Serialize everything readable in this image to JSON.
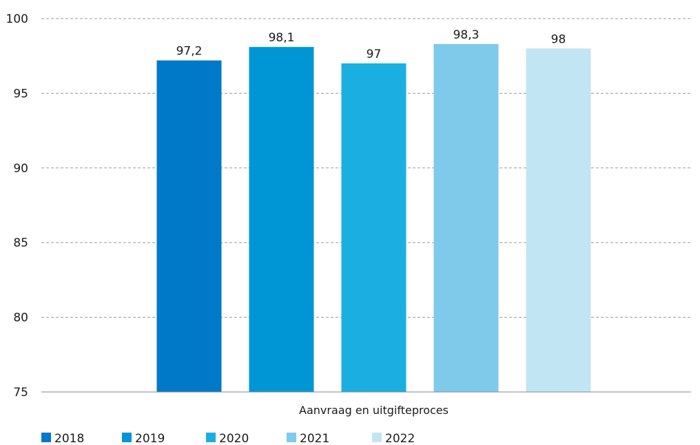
{
  "chart_data": {
    "type": "bar",
    "categories": [
      "Aanvraag en uitgifteproces"
    ],
    "series": [
      {
        "name": "2018",
        "values": [
          97.2
        ],
        "label": "97,2",
        "color": "#0079C8"
      },
      {
        "name": "2019",
        "values": [
          98.1
        ],
        "label": "98,1",
        "color": "#0096D6"
      },
      {
        "name": "2020",
        "values": [
          97.0
        ],
        "label": "97",
        "color": "#1AAFE0"
      },
      {
        "name": "2021",
        "values": [
          98.3
        ],
        "label": "98,3",
        "color": "#7FCAEA"
      },
      {
        "name": "2022",
        "values": [
          98.0
        ],
        "label": "98",
        "color": "#C2E5F4"
      }
    ],
    "ylim": [
      75,
      100
    ],
    "yticks": [
      75,
      80,
      85,
      90,
      95,
      100
    ],
    "xlabel": "",
    "ylabel": "",
    "title": "",
    "grid": "horizontal-dashed",
    "legend": "bottom-left"
  }
}
